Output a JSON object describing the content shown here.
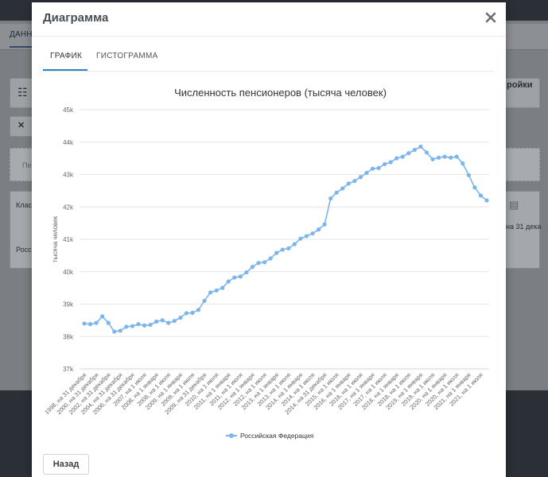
{
  "background": {
    "tab_label": "ДАНН",
    "right_button": "ройки",
    "input_stub": "Пе",
    "header_cell": "Класс",
    "row_cell": "Россий",
    "right_col_header": "на 31 дека",
    "close_glyph": "✕"
  },
  "modal": {
    "title": "Диаграмма",
    "close_icon": "close-icon",
    "tabs": [
      {
        "label": "ГРАФИК",
        "active": true
      },
      {
        "label": "ГИСТОГРАММА",
        "active": false
      }
    ],
    "back_button": "Назад"
  },
  "colors": {
    "series": "#7cb5ec",
    "accent": "#2e86c1"
  },
  "chart_data": {
    "type": "line",
    "title": "Численность пенсионеров (тысяча человек)",
    "ylabel": "тысяча человек",
    "ylim": [
      37,
      45
    ],
    "yticks": [
      "37k",
      "38k",
      "39k",
      "40k",
      "41k",
      "42k",
      "43k",
      "44k",
      "45k"
    ],
    "grid": true,
    "legend_position": "bottom",
    "x_tick_labels": [
      "1998, на 31 декабря",
      "2000, на 31 декабря",
      "2002, на 31 декабря",
      "2004, на 31 декабря",
      "2006, на 31 декабря",
      "2007, на 1 июля",
      "2008, на 1 января",
      "2008, на 1 июля",
      "2009, на 1 января",
      "2009, на 1 июля",
      "2009, на 31 декабря",
      "2010, на 1 июля",
      "2011, на 1 января",
      "2011, на 1 июля",
      "2012, на 1 января",
      "2012, на 1 июля",
      "2013, на 1 января",
      "2013, на 1 июля",
      "2014, на 1 января",
      "2014, на 1 июля",
      "2014, на 31 декабря",
      "2015, на 1 июля",
      "2016, на 1 января",
      "2016, на 1 июля",
      "2017, на 1 января",
      "2017, на 1 июля",
      "2018, на 1 января",
      "2018, на 1 июля",
      "2019, на 1 января",
      "2019, на 1 июля",
      "2020, на 1 января",
      "2020, на 1 июля",
      "2021, на 1 января",
      "2021, на 1 июля"
    ],
    "series": [
      {
        "name": "Российская Федерация",
        "values": [
          38.4,
          38.38,
          38.42,
          38.62,
          38.42,
          38.15,
          38.18,
          38.3,
          38.32,
          38.38,
          38.34,
          38.36,
          38.46,
          38.5,
          38.42,
          38.48,
          38.58,
          38.72,
          38.73,
          38.82,
          39.1,
          39.36,
          39.42,
          39.5,
          39.7,
          39.82,
          39.85,
          39.98,
          40.15,
          40.27,
          40.29,
          40.41,
          40.58,
          40.68,
          40.72,
          40.85,
          41.02,
          41.1,
          41.18,
          41.3,
          41.46,
          42.26,
          42.44,
          42.57,
          42.72,
          42.8,
          42.92,
          43.05,
          43.18,
          43.2,
          43.32,
          43.38,
          43.5,
          43.55,
          43.66,
          43.76,
          43.86,
          43.68,
          43.47,
          43.52,
          43.55,
          43.52,
          43.55,
          43.34,
          42.98,
          42.6,
          42.35,
          42.2
        ]
      }
    ]
  }
}
